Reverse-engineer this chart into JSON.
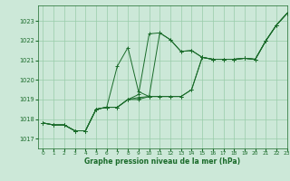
{
  "xlabel": "Graphe pression niveau de la mer (hPa)",
  "bg_color": "#cce8d8",
  "grid_color": "#99ccaa",
  "line_color": "#1a6b2a",
  "xlim": [
    -0.5,
    23
  ],
  "ylim": [
    1016.5,
    1023.8
  ],
  "yticks": [
    1017,
    1018,
    1019,
    1020,
    1021,
    1022,
    1023
  ],
  "xticks": [
    0,
    1,
    2,
    3,
    4,
    5,
    6,
    7,
    8,
    9,
    10,
    11,
    12,
    13,
    14,
    15,
    16,
    17,
    18,
    19,
    20,
    21,
    22,
    23
  ],
  "series": [
    [
      1017.8,
      1017.7,
      1017.7,
      1017.4,
      1017.4,
      1018.5,
      1018.6,
      1018.6,
      1019.0,
      1019.1,
      1019.15,
      1022.4,
      1022.05,
      1021.45,
      1021.5,
      1021.15,
      1021.05,
      1021.05,
      1021.05,
      1021.1,
      1021.05,
      1022.0,
      1022.8,
      1023.4
    ],
    [
      1017.8,
      1017.7,
      1017.7,
      1017.4,
      1017.4,
      1018.5,
      1018.6,
      1020.7,
      1021.65,
      1019.4,
      1019.15,
      1019.15,
      1019.15,
      1019.15,
      1019.5,
      1021.15,
      1021.05,
      1021.05,
      1021.05,
      1021.1,
      1021.05,
      1022.0,
      1022.8,
      1023.4
    ],
    [
      1017.8,
      1017.7,
      1017.7,
      1017.4,
      1017.4,
      1018.5,
      1018.6,
      1018.6,
      1019.0,
      1019.25,
      1022.35,
      1022.4,
      1022.05,
      1021.45,
      1021.5,
      1021.15,
      1021.05,
      1021.05,
      1021.05,
      1021.1,
      1021.05,
      1022.0,
      1022.8,
      1023.4
    ],
    [
      1017.8,
      1017.7,
      1017.7,
      1017.4,
      1017.4,
      1018.5,
      1018.6,
      1018.6,
      1019.0,
      1019.0,
      1019.15,
      1019.15,
      1019.15,
      1019.15,
      1019.5,
      1021.15,
      1021.05,
      1021.05,
      1021.05,
      1021.1,
      1021.05,
      1022.0,
      1022.8,
      1023.4
    ]
  ]
}
